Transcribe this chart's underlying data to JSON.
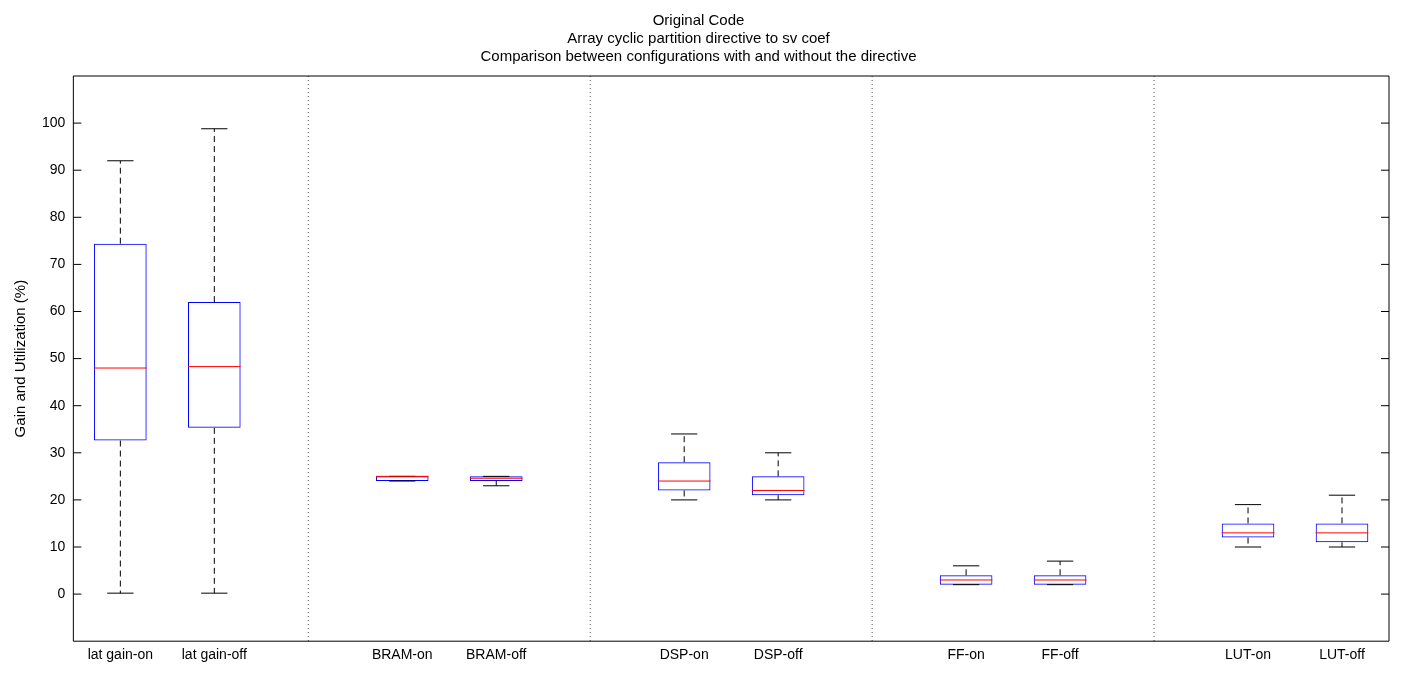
{
  "chart_data": {
    "type": "box",
    "title": "Original Code",
    "subtitle": "Array cyclic partition directive to sv coef\nComparison between configurations with and without the directive",
    "ylabel": "Gain and Utilization (%)",
    "categories": [
      "lat gain-on",
      "lat gain-off",
      null,
      "BRAM-on",
      "BRAM-off",
      null,
      "DSP-on",
      "DSP-off",
      null,
      "FF-on",
      "FF-off",
      null,
      "LUT-on",
      "LUT-off"
    ],
    "boxes": [
      {
        "low": 0.2,
        "q1": 32.6,
        "median": 48,
        "q3": 74.4,
        "high": 92
      },
      {
        "low": 0.2,
        "q1": 35.3,
        "median": 48.3,
        "q3": 62,
        "high": 98.8
      },
      null,
      {
        "low": 24,
        "q1": 24,
        "median": 25,
        "q3": 25,
        "high": 25
      },
      {
        "low": 23,
        "q1": 24,
        "median": 24.6,
        "q3": 25,
        "high": 25
      },
      null,
      {
        "low": 20,
        "q1": 22,
        "median": 24,
        "q3": 28,
        "high": 34
      },
      {
        "low": 20,
        "q1": 21,
        "median": 22,
        "q3": 25,
        "high": 30
      },
      null,
      {
        "low": 2,
        "q1": 2,
        "median": 3,
        "q3": 4,
        "high": 6
      },
      {
        "low": 2,
        "q1": 2,
        "median": 3,
        "q3": 4,
        "high": 7
      },
      null,
      {
        "low": 10,
        "q1": 12,
        "median": 13,
        "q3": 15,
        "high": 19
      },
      {
        "low": 10,
        "q1": 11,
        "median": 13,
        "q3": 15,
        "high": 21
      }
    ],
    "color": "#0000ff",
    "ylim": [
      -10,
      110
    ],
    "yticks": [
      0,
      10,
      20,
      30,
      40,
      50,
      60,
      70,
      80,
      90,
      100
    ],
    "grid": "x",
    "legend": false
  }
}
